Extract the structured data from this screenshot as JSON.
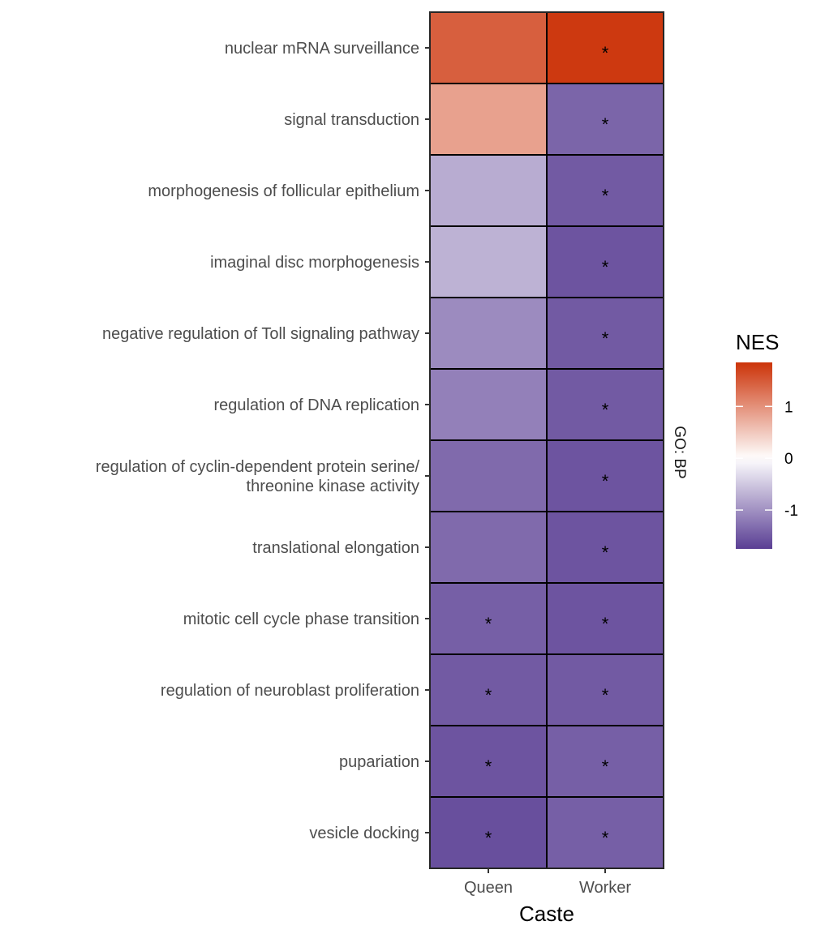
{
  "chart_data": {
    "type": "heatmap",
    "xlabel": "Caste",
    "facet_label": "GO: BP",
    "x_categories": [
      "Queen",
      "Worker"
    ],
    "y_categories": [
      "nuclear mRNA surveillance",
      "signal transduction",
      "morphogenesis of follicular epithelium",
      "imaginal disc morphogenesis",
      "negative regulation of Toll signaling pathway",
      "regulation of DNA replication",
      "regulation of cyclin-dependent protein serine/\nthreonine kinase activity",
      "translational elongation",
      "mitotic cell cycle phase transition",
      "regulation of neuroblast proliferation",
      "pupariation",
      "vesicle docking"
    ],
    "values": [
      [
        1.45,
        1.8
      ],
      [
        0.85,
        -1.4
      ],
      [
        -0.75,
        -1.5
      ],
      [
        -0.7,
        -1.55
      ],
      [
        -1.05,
        -1.5
      ],
      [
        -1.15,
        -1.5
      ],
      [
        -1.35,
        -1.55
      ],
      [
        -1.35,
        -1.55
      ],
      [
        -1.45,
        -1.55
      ],
      [
        -1.5,
        -1.5
      ],
      [
        -1.55,
        -1.45
      ],
      [
        -1.6,
        -1.45
      ]
    ],
    "significant": [
      [
        false,
        true
      ],
      [
        false,
        true
      ],
      [
        false,
        true
      ],
      [
        false,
        true
      ],
      [
        false,
        true
      ],
      [
        false,
        true
      ],
      [
        false,
        true
      ],
      [
        false,
        true
      ],
      [
        true,
        true
      ],
      [
        true,
        true
      ],
      [
        true,
        true
      ],
      [
        true,
        true
      ]
    ],
    "significance_marker": "*",
    "legend": {
      "title": "NES",
      "ticks": [
        1,
        0,
        -1
      ],
      "tick_labels": [
        "1",
        "0",
        "-1"
      ],
      "range": [
        -1.75,
        1.85
      ],
      "low_color": "#5a3e94",
      "mid_color": "#ffffff",
      "high_color": "#cc3309"
    }
  }
}
